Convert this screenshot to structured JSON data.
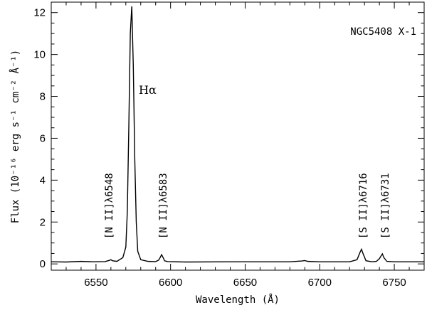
{
  "chart_data": {
    "type": "line",
    "title": "",
    "xlabel": "Wavelength (Å)",
    "ylabel": "Flux (10⁻¹⁶ erg s⁻¹ cm⁻² Å⁻¹)",
    "xlim": [
      6520,
      6770
    ],
    "ylim": [
      -0.3,
      12.5
    ],
    "x_ticks": [
      6550,
      6600,
      6650,
      6700,
      6750
    ],
    "x_tick_labels": [
      "6550",
      "6600",
      "6650",
      "6700",
      "6750"
    ],
    "y_ticks": [
      0,
      2,
      4,
      6,
      8,
      10,
      12
    ],
    "y_tick_labels": [
      "0",
      "2",
      "4",
      "6",
      "8",
      "10",
      "12"
    ],
    "grid": false,
    "legend": null,
    "series": [
      {
        "continuum": 0.1,
        "x": [
          6520,
          6530,
          6540,
          6548,
          6556,
          6559,
          6560,
          6561,
          6564,
          6568,
          6570,
          6571,
          6572,
          6573,
          6574,
          6575,
          6576,
          6577,
          6578,
          6580,
          6585,
          6590,
          6592,
          6593,
          6594,
          6595,
          6596,
          6598,
          6610,
          6640,
          6680,
          6688,
          6690,
          6692,
          6700,
          6720,
          6725,
          6727,
          6728,
          6729,
          6731,
          6735,
          6738,
          6740,
          6742,
          6743,
          6745,
          6750,
          6770
        ],
        "y": [
          0.1,
          0.09,
          0.12,
          0.1,
          0.11,
          0.17,
          0.2,
          0.15,
          0.12,
          0.3,
          0.8,
          2.5,
          6.5,
          11.0,
          12.3,
          9.5,
          5.0,
          2.0,
          0.6,
          0.2,
          0.12,
          0.11,
          0.18,
          0.3,
          0.44,
          0.3,
          0.15,
          0.11,
          0.09,
          0.1,
          0.1,
          0.14,
          0.16,
          0.12,
          0.1,
          0.1,
          0.2,
          0.55,
          0.7,
          0.5,
          0.15,
          0.1,
          0.12,
          0.25,
          0.48,
          0.3,
          0.12,
          0.1,
          0.1
        ]
      }
    ],
    "annotations": {
      "object": "NGC5408 X-1",
      "halpha": "Hα",
      "lines": [
        {
          "label": "[N II]λ6548",
          "wavelength": 6548
        },
        {
          "label": "[N II]λ6583",
          "wavelength": 6583
        },
        {
          "label": "[S II]λ6716",
          "wavelength": 6716
        },
        {
          "label": "[S II]λ6731",
          "wavelength": 6731
        }
      ]
    }
  }
}
